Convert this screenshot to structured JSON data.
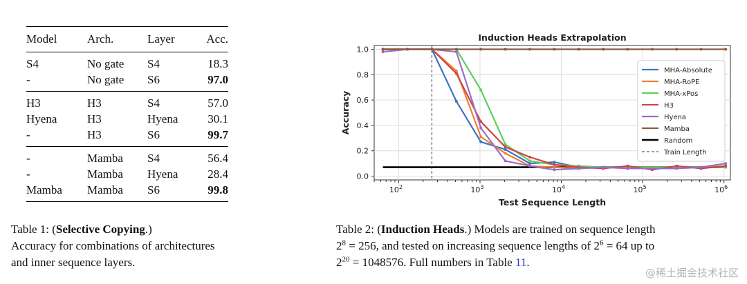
{
  "table1": {
    "headers": [
      "Model",
      "Arch.",
      "Layer",
      "Acc."
    ],
    "groups": [
      [
        {
          "model": "S4",
          "arch": "No gate",
          "layer": "S4",
          "acc": "18.3",
          "bold": false
        },
        {
          "model": "-",
          "arch": "No gate",
          "layer": "S6",
          "acc": "97.0",
          "bold": true
        }
      ],
      [
        {
          "model": "H3",
          "arch": "H3",
          "layer": "S4",
          "acc": "57.0",
          "bold": false
        },
        {
          "model": "Hyena",
          "arch": "H3",
          "layer": "Hyena",
          "acc": "30.1",
          "bold": false
        },
        {
          "model": "-",
          "arch": "H3",
          "layer": "S6",
          "acc": "99.7",
          "bold": true
        }
      ],
      [
        {
          "model": "-",
          "arch": "Mamba",
          "layer": "S4",
          "acc": "56.4",
          "bold": false
        },
        {
          "model": "-",
          "arch": "Mamba",
          "layer": "Hyena",
          "acc": "28.4",
          "bold": false
        },
        {
          "model": "Mamba",
          "arch": "Mamba",
          "layer": "S6",
          "acc": "99.8",
          "bold": true
        }
      ]
    ]
  },
  "caption1": {
    "label": "Table 1: (",
    "bold": "Selective Copying",
    "after_bold": ".)",
    "line2": "Accuracy for combinations of architectures",
    "line3": "and inner sequence layers."
  },
  "caption2": {
    "label": "Table 2: (",
    "bold": "Induction Heads",
    "after_bold": ".)  Models are trained on sequence length",
    "l2_a": "2",
    "l2_sup1": "8",
    "l2_b": " = 256, and tested on increasing sequence lengths of 2",
    "l2_sup2": "6",
    "l2_c": " = 64 up to",
    "l3_a": "2",
    "l3_sup": "20",
    "l3_b": " = 1048576. Full numbers in Table ",
    "l3_link": "11",
    "l3_c": "."
  },
  "watermark": "@稀土掘金技术社区",
  "chart_data": {
    "type": "line",
    "title": "Induction Heads Extrapolation",
    "xlabel": "Test Sequence Length",
    "ylabel": "Accuracy",
    "xscale": "log",
    "xlim": [
      50,
      1200000
    ],
    "ylim": [
      -0.03,
      1.03
    ],
    "xticks": [
      "10^2",
      "10^3",
      "10^4",
      "10^5",
      "10^6"
    ],
    "yticks": [
      "0.0",
      "0.2",
      "0.4",
      "0.6",
      "0.8",
      "1.0"
    ],
    "grid": true,
    "legend_position": "right",
    "train_length": 256,
    "random_level": 0.07,
    "x": [
      64,
      128,
      256,
      512,
      1024,
      2048,
      4096,
      8192,
      16384,
      32768,
      65536,
      131072,
      262144,
      524288,
      1048576
    ],
    "series": [
      {
        "name": "MHA-Absolute",
        "color": "#3a73c4",
        "values": [
          1.0,
          1.0,
          1.0,
          0.59,
          0.27,
          0.21,
          0.1,
          0.11,
          0.07,
          0.07,
          0.07,
          0.07,
          0.07,
          0.07,
          0.07
        ]
      },
      {
        "name": "MHA-RoPE",
        "color": "#ee8033",
        "values": [
          1.0,
          1.0,
          1.0,
          0.83,
          0.31,
          0.18,
          0.08,
          0.07,
          0.06,
          0.07,
          0.07,
          0.06,
          0.07,
          0.07,
          0.08
        ]
      },
      {
        "name": "MHA-xPos",
        "color": "#5fcf5f",
        "values": [
          1.0,
          1.0,
          1.0,
          1.0,
          0.68,
          0.25,
          0.12,
          0.09,
          0.08,
          0.07,
          0.07,
          0.07,
          0.07,
          0.07,
          0.07
        ]
      },
      {
        "name": "H3",
        "color": "#d04444",
        "values": [
          1.0,
          1.0,
          1.0,
          0.81,
          0.43,
          0.23,
          0.15,
          0.09,
          0.07,
          0.06,
          0.08,
          0.05,
          0.08,
          0.06,
          0.08
        ]
      },
      {
        "name": "Hyena",
        "color": "#9b6bc4",
        "values": [
          0.98,
          1.0,
          1.0,
          0.98,
          0.38,
          0.12,
          0.08,
          0.05,
          0.06,
          0.07,
          0.06,
          0.06,
          0.06,
          0.07,
          0.1
        ]
      },
      {
        "name": "Mamba",
        "color": "#8a5a44",
        "values": [
          1.0,
          1.0,
          1.0,
          1.0,
          1.0,
          1.0,
          1.0,
          1.0,
          1.0,
          1.0,
          1.0,
          1.0,
          1.0,
          1.0,
          1.0
        ]
      }
    ],
    "reference_lines": [
      {
        "name": "Random",
        "color": "#000000",
        "style": "solid"
      },
      {
        "name": "Train Length",
        "color": "#333333",
        "style": "dashed"
      }
    ]
  }
}
